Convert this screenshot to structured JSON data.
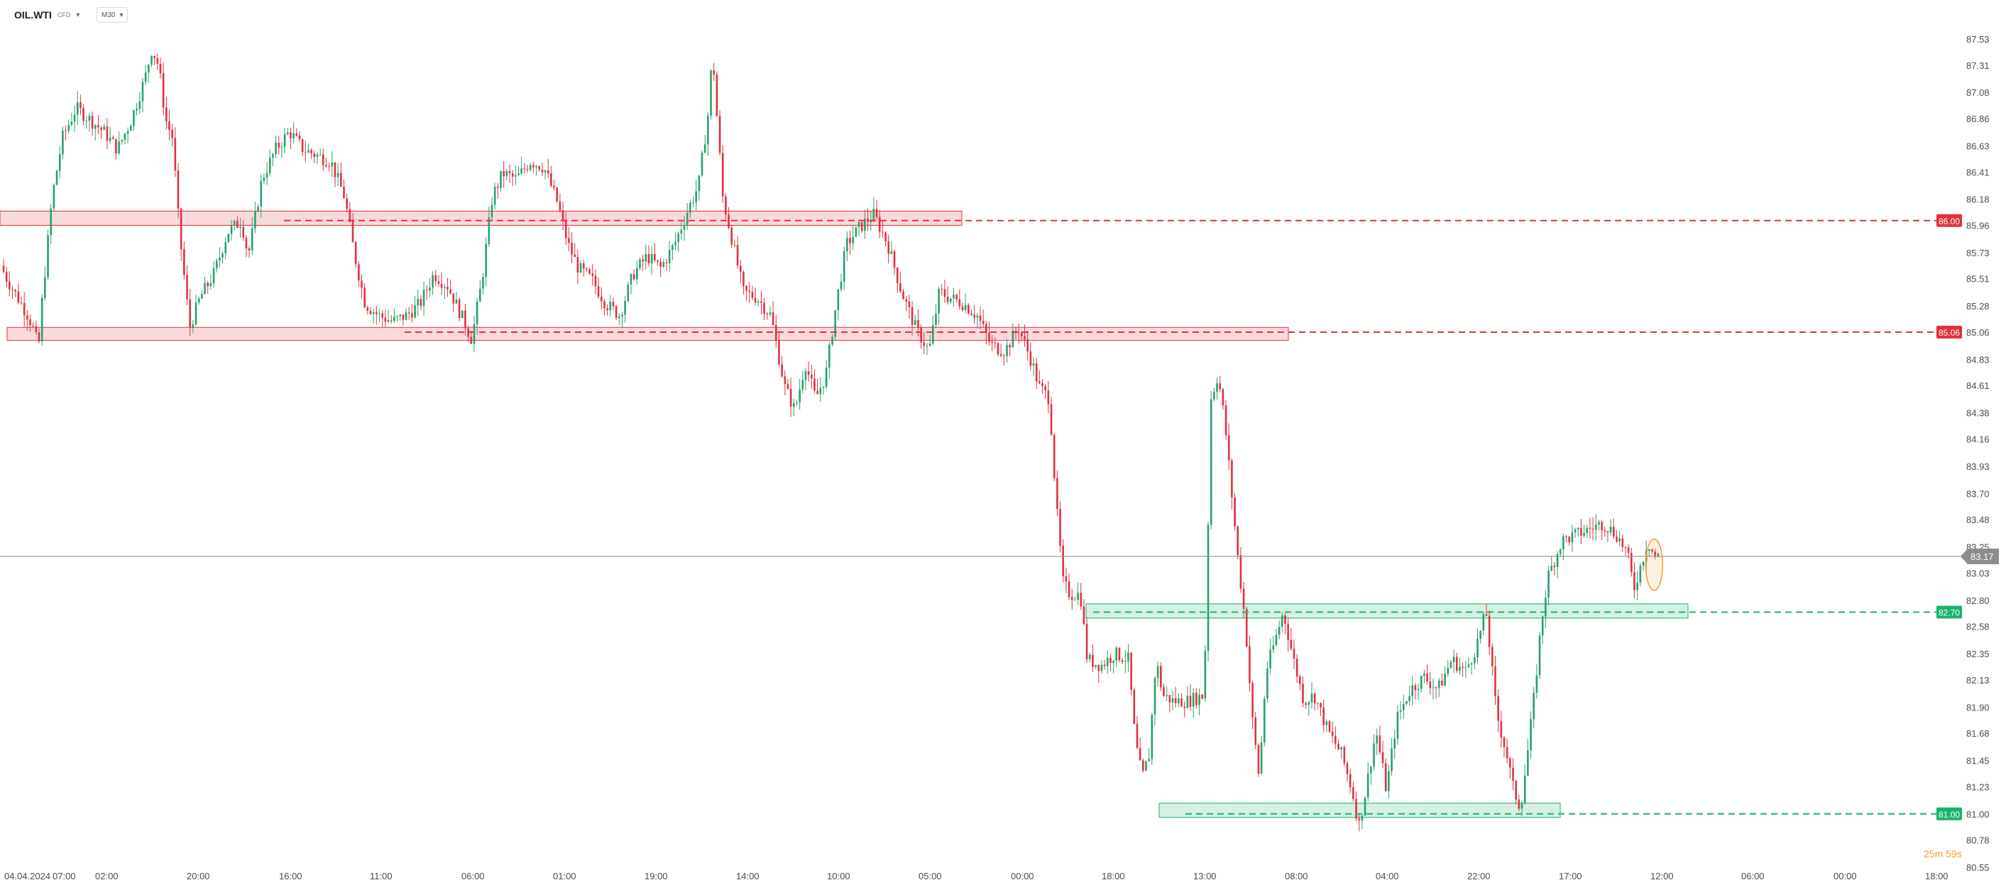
{
  "header": {
    "symbol": "OIL.WTI",
    "symbol_suffix": "CFD",
    "symbol_dropdown_icon": "chevron-down-icon",
    "timeframe": "M30",
    "timeframe_dropdown_icon": "chevron-down-icon"
  },
  "countdown": "25m 59s",
  "colors": {
    "bull": "#26a269",
    "bear": "#e0313f",
    "resistance": "#e0313f",
    "support": "#19b36b",
    "current_price": "#8d8d8d",
    "countdown": "#f39c32"
  },
  "chart_data": {
    "type": "candlestick",
    "timeframe": "M30",
    "ylim": [
      80.55,
      87.53
    ],
    "y_ticks": [
      87.53,
      87.31,
      87.08,
      86.86,
      86.63,
      86.41,
      86.18,
      85.96,
      85.73,
      85.51,
      85.28,
      85.06,
      84.83,
      84.61,
      84.38,
      84.16,
      83.93,
      83.7,
      83.48,
      83.25,
      83.03,
      82.8,
      82.58,
      82.35,
      82.13,
      81.9,
      81.68,
      81.45,
      81.23,
      81.0,
      80.78,
      80.55
    ],
    "x_ticks": [
      "04.04.2024",
      "07:00",
      "02:00",
      "20:00",
      "16:00",
      "11:00",
      "06:00",
      "01:00",
      "19:00",
      "14:00",
      "10:00",
      "05:00",
      "00:00",
      "18:00",
      "13:00",
      "08:00",
      "04:00",
      "22:00",
      "17:00",
      "12:00",
      "06:00",
      "00:00",
      "18:00"
    ],
    "current_price": 83.17,
    "price_path": [
      [
        0,
        85.62
      ],
      [
        0.2,
        85.5
      ],
      [
        0.5,
        85.35
      ],
      [
        0.8,
        85.2
      ],
      [
        1.0,
        85.05
      ],
      [
        1.1,
        84.9
      ],
      [
        1.2,
        85.3
      ],
      [
        1.5,
        86.2
      ],
      [
        1.8,
        86.7
      ],
      [
        2.2,
        86.95
      ],
      [
        2.6,
        86.85
      ],
      [
        3.0,
        86.75
      ],
      [
        3.4,
        86.6
      ],
      [
        3.8,
        86.85
      ],
      [
        4.2,
        87.2
      ],
      [
        4.4,
        87.45
      ],
      [
        4.6,
        87.3
      ],
      [
        4.8,
        86.85
      ],
      [
        5.0,
        86.7
      ],
      [
        5.2,
        85.9
      ],
      [
        5.5,
        85.1
      ],
      [
        5.8,
        85.35
      ],
      [
        6.2,
        85.55
      ],
      [
        6.6,
        85.9
      ],
      [
        7.0,
        86.0
      ],
      [
        7.2,
        85.7
      ],
      [
        7.6,
        86.35
      ],
      [
        8.0,
        86.6
      ],
      [
        8.4,
        86.75
      ],
      [
        8.8,
        86.6
      ],
      [
        9.2,
        86.55
      ],
      [
        9.6,
        86.5
      ],
      [
        10.0,
        86.2
      ],
      [
        10.3,
        85.7
      ],
      [
        10.6,
        85.3
      ],
      [
        11.0,
        85.2
      ],
      [
        11.4,
        85.15
      ],
      [
        11.8,
        85.2
      ],
      [
        12.2,
        85.3
      ],
      [
        12.6,
        85.55
      ],
      [
        13.0,
        85.45
      ],
      [
        13.4,
        85.2
      ],
      [
        13.7,
        85.0
      ],
      [
        14.0,
        85.5
      ],
      [
        14.3,
        86.2
      ],
      [
        14.6,
        86.4
      ],
      [
        15.0,
        86.35
      ],
      [
        15.4,
        86.5
      ],
      [
        15.8,
        86.45
      ],
      [
        16.2,
        86.15
      ],
      [
        16.5,
        85.8
      ],
      [
        16.8,
        85.6
      ],
      [
        17.2,
        85.5
      ],
      [
        17.6,
        85.3
      ],
      [
        18.0,
        85.2
      ],
      [
        18.4,
        85.55
      ],
      [
        18.8,
        85.7
      ],
      [
        19.2,
        85.6
      ],
      [
        19.6,
        85.8
      ],
      [
        20.0,
        86.1
      ],
      [
        20.3,
        86.3
      ],
      [
        20.6,
        86.95
      ],
      [
        20.7,
        87.45
      ],
      [
        20.8,
        87.0
      ],
      [
        21.0,
        86.2
      ],
      [
        21.3,
        85.8
      ],
      [
        21.6,
        85.4
      ],
      [
        22.0,
        85.35
      ],
      [
        22.4,
        85.2
      ],
      [
        22.8,
        84.6
      ],
      [
        23.1,
        84.4
      ],
      [
        23.4,
        84.8
      ],
      [
        23.7,
        84.5
      ],
      [
        24.0,
        84.7
      ],
      [
        24.3,
        85.3
      ],
      [
        24.6,
        85.8
      ],
      [
        25.0,
        85.95
      ],
      [
        25.4,
        86.05
      ],
      [
        25.8,
        85.8
      ],
      [
        26.2,
        85.4
      ],
      [
        26.6,
        85.1
      ],
      [
        27.0,
        84.9
      ],
      [
        27.3,
        85.4
      ],
      [
        27.6,
        85.35
      ],
      [
        28.0,
        85.3
      ],
      [
        28.4,
        85.2
      ],
      [
        28.8,
        84.95
      ],
      [
        29.2,
        84.9
      ],
      [
        29.6,
        85.1
      ],
      [
        30.0,
        84.8
      ],
      [
        30.2,
        84.6
      ],
      [
        30.5,
        84.5
      ],
      [
        30.7,
        83.6
      ],
      [
        30.9,
        82.95
      ],
      [
        31.1,
        82.85
      ],
      [
        31.4,
        82.85
      ],
      [
        31.6,
        82.3
      ],
      [
        32.0,
        82.25
      ],
      [
        32.4,
        82.35
      ],
      [
        32.8,
        82.3
      ],
      [
        33.0,
        81.6
      ],
      [
        33.2,
        81.3
      ],
      [
        33.4,
        81.5
      ],
      [
        33.6,
        82.3
      ],
      [
        33.8,
        82.0
      ],
      [
        34.1,
        81.95
      ],
      [
        34.5,
        81.95
      ],
      [
        35.0,
        82.0
      ],
      [
        35.2,
        84.5
      ],
      [
        35.4,
        84.7
      ],
      [
        35.6,
        84.3
      ],
      [
        35.8,
        83.7
      ],
      [
        36.0,
        83.1
      ],
      [
        36.2,
        82.6
      ],
      [
        36.4,
        81.8
      ],
      [
        36.6,
        81.3
      ],
      [
        36.8,
        82.2
      ],
      [
        37.0,
        82.4
      ],
      [
        37.3,
        82.7
      ],
      [
        37.6,
        82.3
      ],
      [
        37.9,
        81.95
      ],
      [
        38.2,
        82.0
      ],
      [
        38.6,
        81.7
      ],
      [
        39.0,
        81.5
      ],
      [
        39.3,
        81.2
      ],
      [
        39.5,
        80.9
      ],
      [
        39.7,
        81.2
      ],
      [
        40.0,
        81.7
      ],
      [
        40.3,
        81.2
      ],
      [
        40.6,
        81.8
      ],
      [
        41.0,
        82.05
      ],
      [
        41.4,
        82.15
      ],
      [
        41.8,
        82.05
      ],
      [
        42.2,
        82.3
      ],
      [
        42.6,
        82.2
      ],
      [
        42.9,
        82.4
      ],
      [
        43.2,
        82.7
      ],
      [
        43.5,
        81.85
      ],
      [
        43.8,
        81.5
      ],
      [
        44.0,
        81.2
      ],
      [
        44.2,
        81.05
      ],
      [
        44.4,
        81.5
      ],
      [
        44.6,
        82.0
      ],
      [
        44.8,
        82.6
      ],
      [
        45.0,
        83.0
      ],
      [
        45.4,
        83.3
      ],
      [
        45.8,
        83.35
      ],
      [
        46.2,
        83.4
      ],
      [
        46.6,
        83.45
      ],
      [
        47.0,
        83.35
      ],
      [
        47.3,
        83.2
      ],
      [
        47.5,
        82.9
      ],
      [
        47.7,
        83.1
      ],
      [
        47.9,
        83.3
      ],
      [
        48.1,
        83.17
      ]
    ],
    "zones": [
      {
        "label": "86.00",
        "level": 86.0,
        "low": 85.96,
        "high": 86.08,
        "kind": "resistance"
      },
      {
        "label": "85.06",
        "level": 85.06,
        "low": 84.99,
        "high": 85.1,
        "kind": "resistance"
      },
      {
        "label": "82.70",
        "level": 82.7,
        "low": 82.65,
        "high": 82.77,
        "kind": "support"
      },
      {
        "label": "81.00",
        "level": 81.0,
        "low": 80.97,
        "high": 81.09,
        "kind": "support"
      }
    ]
  }
}
